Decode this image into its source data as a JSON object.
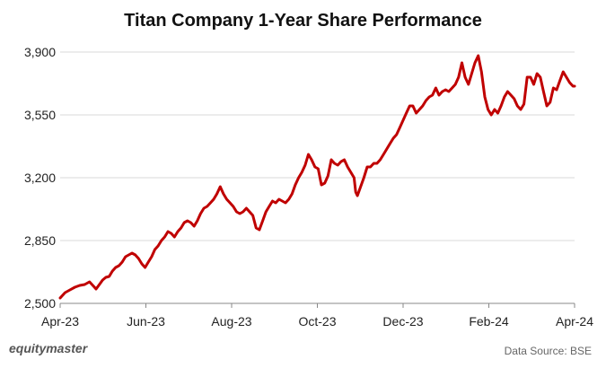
{
  "chart_data": {
    "type": "line",
    "title": "Titan Company 1-Year Share Performance",
    "xlabel": "",
    "ylabel": "",
    "x_tick_labels": [
      "Apr-23",
      "Jun-23",
      "Aug-23",
      "Oct-23",
      "Dec-23",
      "Feb-24",
      "Apr-24"
    ],
    "y_tick_labels": [
      "2,500",
      "2,850",
      "3,200",
      "3,550",
      "3,900"
    ],
    "ylim": [
      2500,
      3900
    ],
    "grid": "horizontal",
    "line_color": "#c00000",
    "series": [
      {
        "values": [
          [
            0,
            2530
          ],
          [
            3,
            2560
          ],
          [
            6,
            2575
          ],
          [
            9,
            2590
          ],
          [
            12,
            2600
          ],
          [
            15,
            2605
          ],
          [
            18,
            2620
          ],
          [
            20,
            2600
          ],
          [
            22,
            2580
          ],
          [
            24,
            2605
          ],
          [
            26,
            2630
          ],
          [
            28,
            2645
          ],
          [
            30,
            2650
          ],
          [
            32,
            2680
          ],
          [
            34,
            2700
          ],
          [
            36,
            2710
          ],
          [
            38,
            2730
          ],
          [
            40,
            2760
          ],
          [
            42,
            2770
          ],
          [
            44,
            2780
          ],
          [
            46,
            2770
          ],
          [
            48,
            2750
          ],
          [
            50,
            2720
          ],
          [
            52,
            2700
          ],
          [
            54,
            2730
          ],
          [
            56,
            2760
          ],
          [
            58,
            2800
          ],
          [
            60,
            2820
          ],
          [
            62,
            2850
          ],
          [
            64,
            2870
          ],
          [
            66,
            2900
          ],
          [
            68,
            2890
          ],
          [
            70,
            2870
          ],
          [
            72,
            2900
          ],
          [
            74,
            2920
          ],
          [
            76,
            2950
          ],
          [
            78,
            2960
          ],
          [
            80,
            2950
          ],
          [
            82,
            2930
          ],
          [
            84,
            2960
          ],
          [
            86,
            3000
          ],
          [
            88,
            3030
          ],
          [
            90,
            3040
          ],
          [
            92,
            3060
          ],
          [
            94,
            3080
          ],
          [
            96,
            3110
          ],
          [
            98,
            3150
          ],
          [
            100,
            3110
          ],
          [
            102,
            3080
          ],
          [
            104,
            3060
          ],
          [
            106,
            3040
          ],
          [
            108,
            3010
          ],
          [
            110,
            3000
          ],
          [
            112,
            3010
          ],
          [
            114,
            3030
          ],
          [
            116,
            3010
          ],
          [
            118,
            2990
          ],
          [
            120,
            2920
          ],
          [
            122,
            2910
          ],
          [
            124,
            2960
          ],
          [
            126,
            3010
          ],
          [
            128,
            3040
          ],
          [
            130,
            3070
          ],
          [
            132,
            3060
          ],
          [
            134,
            3080
          ],
          [
            136,
            3070
          ],
          [
            138,
            3060
          ],
          [
            140,
            3080
          ],
          [
            142,
            3110
          ],
          [
            144,
            3160
          ],
          [
            146,
            3200
          ],
          [
            148,
            3230
          ],
          [
            150,
            3270
          ],
          [
            152,
            3330
          ],
          [
            154,
            3300
          ],
          [
            156,
            3260
          ],
          [
            158,
            3250
          ],
          [
            160,
            3160
          ],
          [
            162,
            3170
          ],
          [
            164,
            3210
          ],
          [
            166,
            3300
          ],
          [
            168,
            3280
          ],
          [
            170,
            3270
          ],
          [
            172,
            3290
          ],
          [
            174,
            3300
          ],
          [
            176,
            3260
          ],
          [
            178,
            3230
          ],
          [
            180,
            3200
          ],
          [
            181,
            3120
          ],
          [
            182,
            3100
          ],
          [
            184,
            3150
          ],
          [
            186,
            3200
          ],
          [
            188,
            3260
          ],
          [
            190,
            3260
          ],
          [
            192,
            3280
          ],
          [
            194,
            3280
          ],
          [
            196,
            3300
          ],
          [
            198,
            3330
          ],
          [
            200,
            3360
          ],
          [
            202,
            3390
          ],
          [
            204,
            3420
          ],
          [
            206,
            3440
          ],
          [
            208,
            3480
          ],
          [
            210,
            3520
          ],
          [
            212,
            3560
          ],
          [
            214,
            3600
          ],
          [
            216,
            3600
          ],
          [
            218,
            3560
          ],
          [
            220,
            3580
          ],
          [
            222,
            3600
          ],
          [
            224,
            3630
          ],
          [
            226,
            3650
          ],
          [
            228,
            3660
          ],
          [
            230,
            3700
          ],
          [
            232,
            3660
          ],
          [
            234,
            3680
          ],
          [
            236,
            3690
          ],
          [
            238,
            3680
          ],
          [
            240,
            3700
          ],
          [
            242,
            3720
          ],
          [
            244,
            3760
          ],
          [
            246,
            3840
          ],
          [
            248,
            3760
          ],
          [
            250,
            3720
          ],
          [
            252,
            3780
          ],
          [
            254,
            3840
          ],
          [
            256,
            3880
          ],
          [
            258,
            3790
          ],
          [
            260,
            3650
          ],
          [
            262,
            3580
          ],
          [
            264,
            3550
          ],
          [
            266,
            3580
          ],
          [
            268,
            3560
          ],
          [
            270,
            3600
          ],
          [
            272,
            3650
          ],
          [
            274,
            3680
          ],
          [
            276,
            3660
          ],
          [
            278,
            3640
          ],
          [
            280,
            3600
          ],
          [
            282,
            3580
          ],
          [
            284,
            3610
          ],
          [
            286,
            3760
          ],
          [
            288,
            3760
          ],
          [
            290,
            3720
          ],
          [
            292,
            3780
          ],
          [
            294,
            3760
          ],
          [
            296,
            3680
          ],
          [
            298,
            3600
          ],
          [
            300,
            3620
          ],
          [
            302,
            3700
          ],
          [
            304,
            3690
          ],
          [
            306,
            3740
          ],
          [
            308,
            3790
          ],
          [
            310,
            3760
          ],
          [
            312,
            3730
          ],
          [
            314,
            3710
          ],
          [
            315,
            3710
          ]
        ]
      }
    ]
  },
  "footer": {
    "brand": "equitymaster",
    "source": "Data Source: BSE"
  }
}
